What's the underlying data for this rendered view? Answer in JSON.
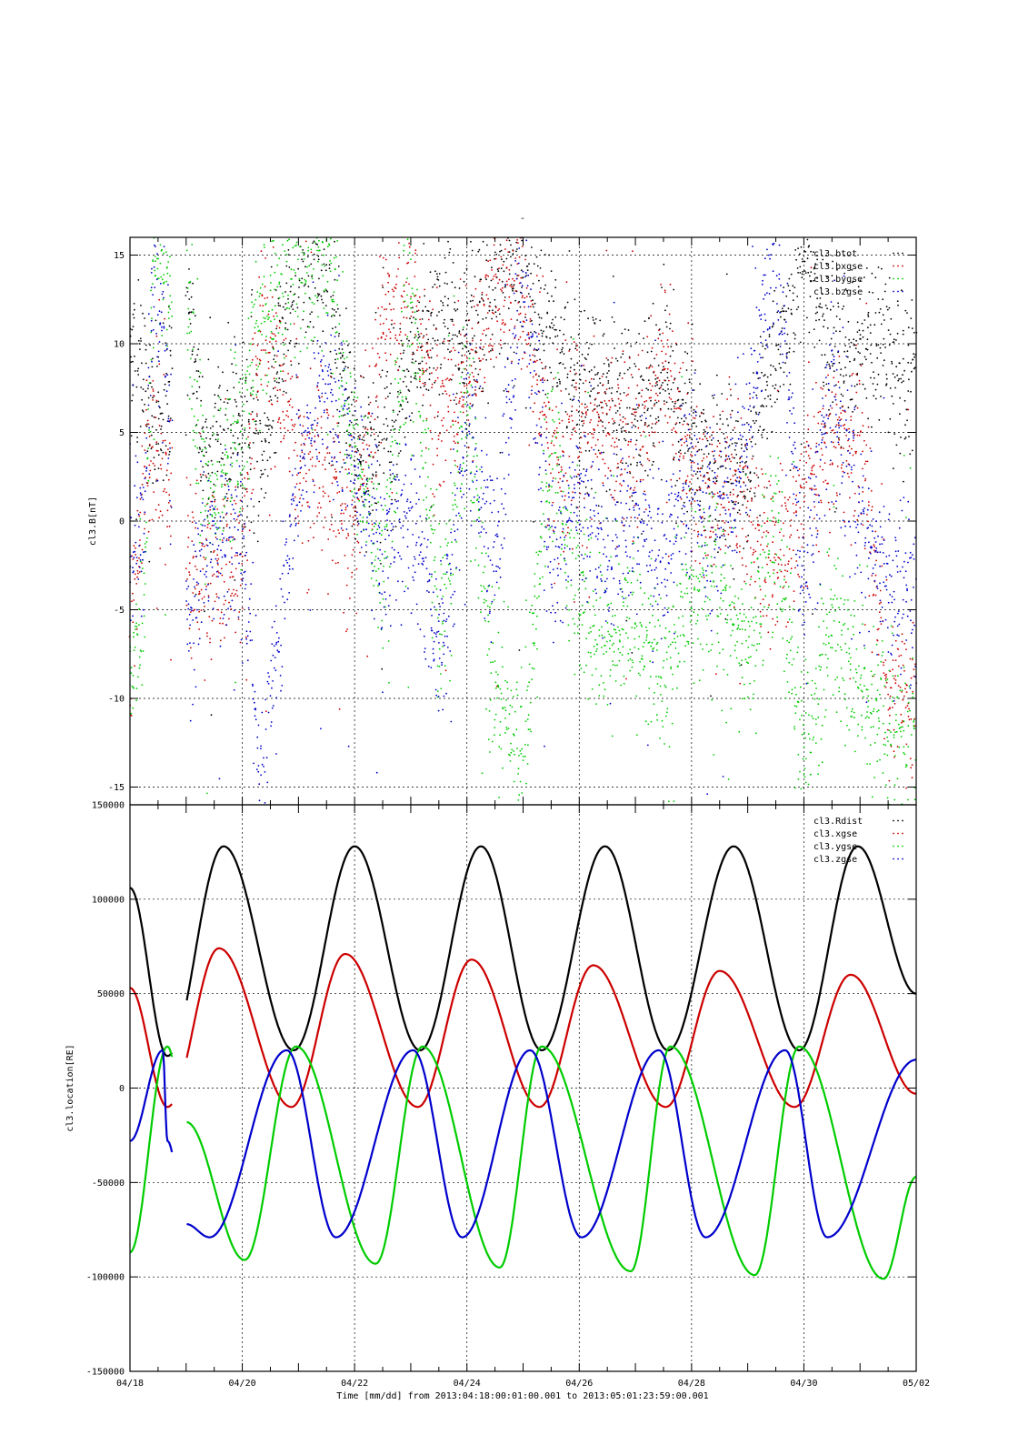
{
  "chart_data": [
    {
      "type": "scatter",
      "title": "-",
      "ylabel": "cl3.B[nT]",
      "ylim": [
        -16,
        16
      ],
      "yticks": [
        -15,
        -10,
        -5,
        0,
        5,
        10,
        15
      ],
      "grid": true,
      "legend_position": "top-right",
      "series": [
        {
          "name": "cl3.btot",
          "color": "#000000",
          "x": [
            "04/18 00:00",
            "04/18 06:00",
            "04/18 10:00",
            "04/19 02:00",
            "04/19 08:00",
            "04/19 16:00",
            "04/20 00:00",
            "04/20 08:00",
            "04/21 00:00",
            "04/21 12:00",
            "04/22 00:00",
            "04/22 12:00",
            "04/23 00:00",
            "04/23 12:00",
            "04/24 00:00",
            "04/24 12:00",
            "04/25 00:00",
            "04/25 12:00",
            "04/26 00:00",
            "04/26 12:00",
            "04/27 00:00",
            "04/27 12:00",
            "04/28 00:00",
            "04/28 12:00",
            "04/29 00:00",
            "04/29 12:00",
            "04/30 00:00",
            "04/30 12:00",
            "05/01 00:00",
            "05/01 12:00"
          ],
          "y": [
            10,
            8,
            5,
            11,
            3.5,
            4.5,
            5,
            3,
            15,
            14,
            4,
            4,
            8,
            12,
            10,
            13,
            15,
            10,
            8,
            7,
            6,
            8,
            5,
            3,
            3,
            9,
            15,
            10,
            10,
            9
          ]
        },
        {
          "name": "cl3.bxgse",
          "color": "#cc0000",
          "x": [
            "04/18 00:00",
            "04/18 06:00",
            "04/18 10:00",
            "04/19 02:00",
            "04/19 08:00",
            "04/19 16:00",
            "04/20 00:00",
            "04/20 08:00",
            "04/21 00:00",
            "04/21 12:00",
            "04/22 00:00",
            "04/22 12:00",
            "04/23 00:00",
            "04/23 12:00",
            "04/24 00:00",
            "04/24 12:00",
            "04/25 00:00",
            "04/25 12:00",
            "04/26 00:00",
            "04/26 12:00",
            "04/27 00:00",
            "04/27 12:00",
            "04/28 00:00",
            "04/28 12:00",
            "04/29 00:00",
            "04/29 12:00",
            "04/30 00:00",
            "04/30 12:00",
            "05/01 00:00",
            "05/01 12:00"
          ],
          "y": [
            -7,
            2,
            6,
            -3,
            -3,
            -3,
            -2,
            12,
            4,
            3,
            -1,
            10,
            15,
            5,
            8,
            12,
            13,
            3,
            5,
            5,
            4,
            10,
            2,
            2,
            1,
            -3,
            2,
            4,
            5,
            -10
          ]
        },
        {
          "name": "cl3.bygse",
          "color": "#00cc00",
          "x": [
            "04/18 00:00",
            "04/18 06:00",
            "04/18 10:00",
            "04/19 02:00",
            "04/19 08:00",
            "04/19 16:00",
            "04/20 00:00",
            "04/20 08:00",
            "04/21 00:00",
            "04/21 12:00",
            "04/22 00:00",
            "04/22 12:00",
            "04/23 00:00",
            "04/23 12:00",
            "04/24 00:00",
            "04/24 12:00",
            "04/25 00:00",
            "04/25 12:00",
            "04/26 00:00",
            "04/26 12:00",
            "04/27 00:00",
            "04/27 12:00",
            "04/28 00:00",
            "04/28 12:00",
            "04/29 00:00",
            "04/29 12:00",
            "04/30 00:00",
            "04/30 12:00",
            "05/01 00:00",
            "05/01 12:00"
          ],
          "y": [
            -9,
            -5,
            15,
            10,
            2,
            3,
            4,
            12,
            15,
            15,
            3,
            -3,
            14,
            -6,
            7,
            -10,
            -13,
            5,
            -5,
            -7,
            -6,
            -9,
            -4,
            -4,
            -8,
            0,
            -13,
            -6,
            -9,
            -12
          ]
        },
        {
          "name": "cl3.bzgse",
          "color": "#0000cc",
          "x": [
            "04/18 00:00",
            "04/18 06:00",
            "04/18 10:00",
            "04/19 02:00",
            "04/19 08:00",
            "04/19 16:00",
            "04/20 00:00",
            "04/20 08:00",
            "04/21 00:00",
            "04/21 12:00",
            "04/22 00:00",
            "04/22 12:00",
            "04/23 00:00",
            "04/23 12:00",
            "04/24 00:00",
            "04/24 12:00",
            "04/25 00:00",
            "04/25 12:00",
            "04/26 00:00",
            "04/26 12:00",
            "04/27 00:00",
            "04/27 12:00",
            "04/28 00:00",
            "04/28 12:00",
            "04/29 00:00",
            "04/29 12:00",
            "04/30 00:00",
            "04/30 12:00",
            "05/01 00:00",
            "05/01 12:00"
          ],
          "y": [
            -3,
            0,
            15,
            -6,
            -1,
            -1,
            -1,
            -15,
            3,
            8,
            4,
            -3,
            2,
            -8,
            6,
            -3,
            15,
            -2,
            2,
            -2,
            0,
            -2,
            3,
            -1,
            5,
            15,
            -4,
            8,
            0,
            -4
          ]
        }
      ]
    },
    {
      "type": "line",
      "ylabel": "cl3.location[RE]",
      "xlabel": "Time [mm/dd]  from 2013:04:18:00:01:00.001  to  2013:05:01:23:59:00.001",
      "xticks": [
        "04/18",
        "04/20",
        "04/22",
        "04/24",
        "04/26",
        "04/28",
        "04/30",
        "05/02"
      ],
      "ylim": [
        -150000,
        150000
      ],
      "yticks": [
        -150000,
        -100000,
        -50000,
        0,
        50000,
        100000,
        150000
      ],
      "grid": true,
      "legend_position": "top-right",
      "data_gap": [
        "04/18 18:00",
        "04/19 00:00"
      ],
      "series": [
        {
          "name": "cl3.Rdist",
          "color": "#000000",
          "x": [
            "04/18 00:00",
            "04/18 16:00",
            "04/19 16:00",
            "04/20 22:00",
            "04/22 00:00",
            "04/23 04:00",
            "04/24 06:00",
            "04/25 08:00",
            "04/26 11:00",
            "04/27 14:00",
            "04/28 18:00",
            "04/29 22:00",
            "04/30 23:00",
            "05/02 00:00"
          ],
          "y": [
            106000,
            17000,
            128000,
            20000,
            128000,
            20000,
            128000,
            20000,
            128000,
            20000,
            128000,
            20000,
            128000,
            50000
          ]
        },
        {
          "name": "cl3.xgse",
          "color": "#cc0000",
          "x": [
            "04/18 00:00",
            "04/18 16:00",
            "04/19 14:00",
            "04/20 21:00",
            "04/21 20:00",
            "04/23 03:00",
            "04/24 02:00",
            "04/25 07:00",
            "04/26 06:00",
            "04/27 13:00",
            "04/28 12:00",
            "04/29 20:00",
            "04/30 20:00",
            "05/02 00:00"
          ],
          "y": [
            53000,
            -10000,
            74000,
            -10000,
            71000,
            -10000,
            68000,
            -10000,
            65000,
            -10000,
            62000,
            -10000,
            60000,
            -3000
          ]
        },
        {
          "name": "cl3.ygse",
          "color": "#00cc00",
          "x": [
            "04/18 00:00",
            "04/18 16:00",
            "04/19 00:00",
            "04/20 01:00",
            "04/20 23:00",
            "04/22 09:00",
            "04/23 05:00",
            "04/24 14:00",
            "04/25 08:00",
            "04/26 22:00",
            "04/27 15:00",
            "04/29 03:00",
            "04/29 22:00",
            "05/01 10:00",
            "05/02 00:00"
          ],
          "y": [
            -87000,
            22000,
            -18000,
            -91000,
            22000,
            -93000,
            22000,
            -95000,
            22000,
            -97000,
            22000,
            -99000,
            22000,
            -101000,
            -47000
          ]
        },
        {
          "name": "cl3.zgse",
          "color": "#0000cc",
          "x": [
            "04/18 00:00",
            "04/18 14:00",
            "04/18 16:00",
            "04/19 00:00",
            "04/19 10:00",
            "04/20 19:00",
            "04/21 16:00",
            "04/23 01:00",
            "04/23 22:00",
            "04/25 03:00",
            "04/26 01:00",
            "04/27 10:00",
            "04/28 06:00",
            "04/29 16:00",
            "04/30 10:00",
            "05/02 00:00"
          ],
          "y": [
            -28000,
            20000,
            -28000,
            -72000,
            -79000,
            20000,
            -79000,
            20000,
            -79000,
            20000,
            -79000,
            20000,
            -79000,
            20000,
            -79000,
            15000
          ]
        }
      ]
    }
  ]
}
